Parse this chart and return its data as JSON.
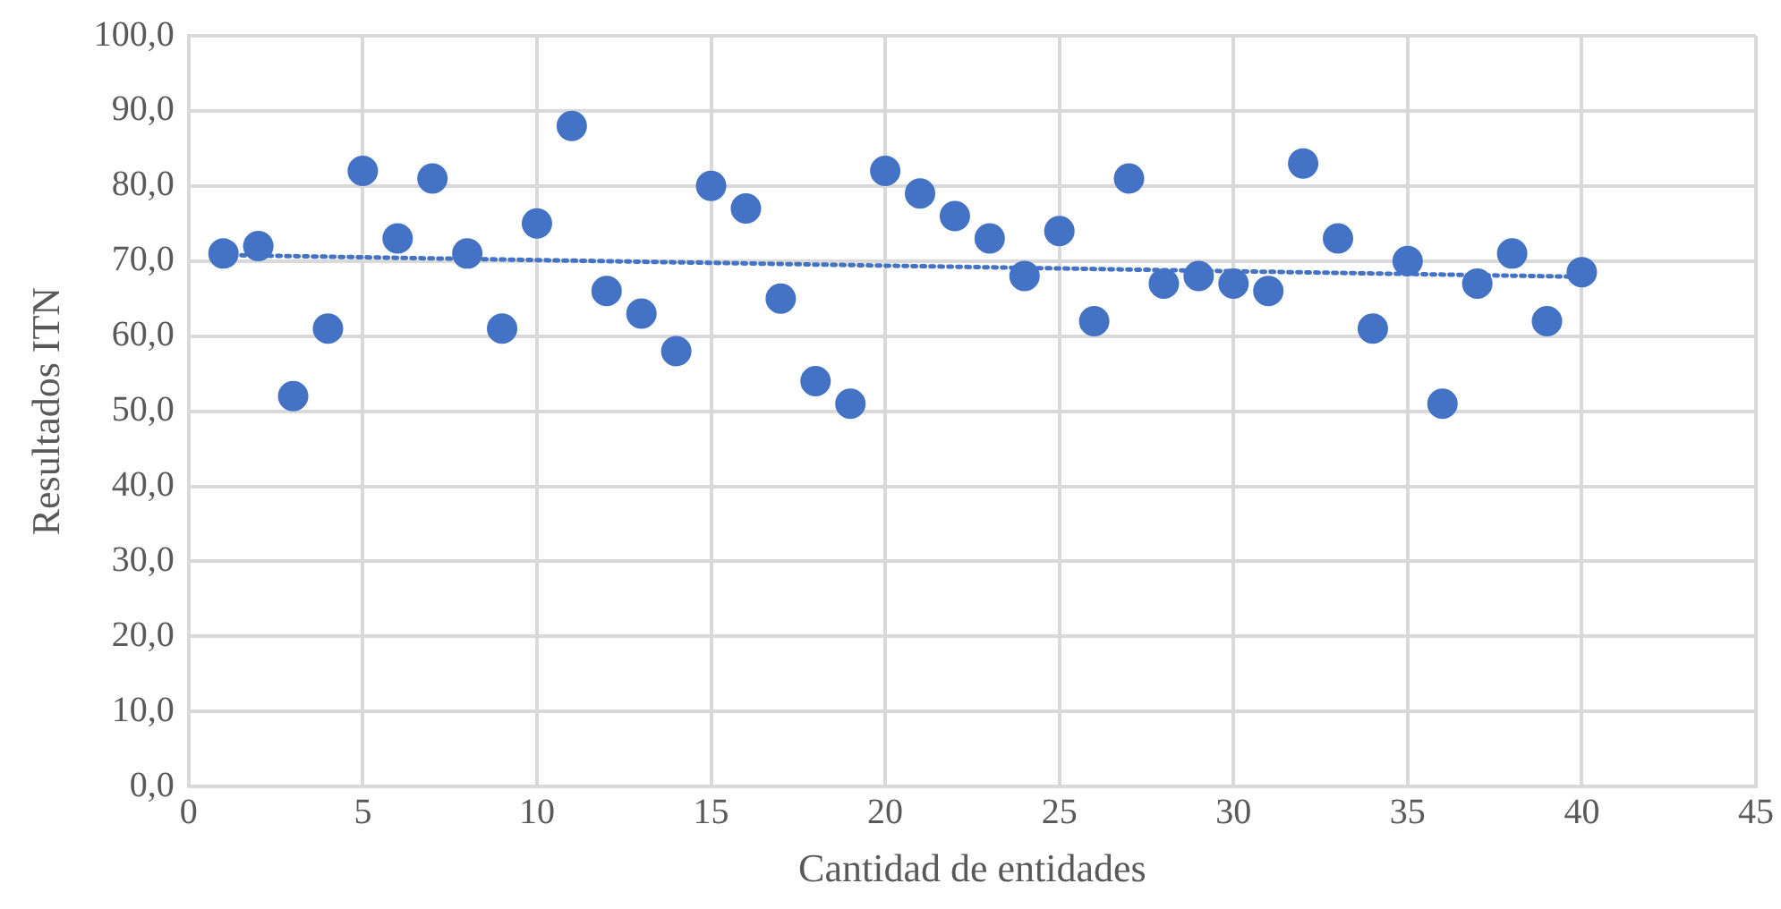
{
  "chart_data": {
    "type": "scatter",
    "xlabel": "Cantidad de entidades",
    "ylabel": "Resultados ITN",
    "grid": true,
    "xlim": [
      0,
      45
    ],
    "xticks": [
      0,
      5,
      10,
      15,
      20,
      25,
      30,
      35,
      40,
      45
    ],
    "ylim": [
      0,
      100
    ],
    "yticks": [
      {
        "value": 0,
        "label": "0,0"
      },
      {
        "value": 10,
        "label": "10,0"
      },
      {
        "value": 20,
        "label": "20,0"
      },
      {
        "value": 30,
        "label": "30,0"
      },
      {
        "value": 40,
        "label": "40,0"
      },
      {
        "value": 50,
        "label": "50,0"
      },
      {
        "value": 60,
        "label": "60,0"
      },
      {
        "value": 70,
        "label": "70,0"
      },
      {
        "value": 80,
        "label": "80,0"
      },
      {
        "value": 90,
        "label": "90,0"
      },
      {
        "value": 100,
        "label": "100,0"
      }
    ],
    "series": [
      {
        "marker": "circle",
        "color": "#4472c4",
        "x": [
          1,
          2,
          3,
          4,
          5,
          6,
          7,
          8,
          9,
          10,
          11,
          12,
          13,
          14,
          15,
          16,
          17,
          18,
          19,
          20,
          21,
          22,
          23,
          24,
          25,
          26,
          27,
          28,
          29,
          30,
          31,
          32,
          33,
          34,
          35,
          36,
          37,
          38,
          39,
          40
        ],
        "values": [
          71,
          72,
          52,
          61,
          82,
          73,
          81,
          71,
          61,
          75,
          88,
          66,
          63,
          58,
          80,
          77,
          65,
          54,
          51,
          82,
          79,
          76,
          73,
          68,
          74,
          62,
          81,
          67,
          68,
          67,
          66,
          83,
          73,
          61,
          70,
          51,
          67,
          71,
          62,
          68.5
        ]
      },
      {
        "type": "line",
        "color": "#4472c4",
        "line_style": "dotted",
        "x": [
          1,
          40
        ],
        "values": [
          70.8,
          67.9
        ]
      }
    ]
  }
}
